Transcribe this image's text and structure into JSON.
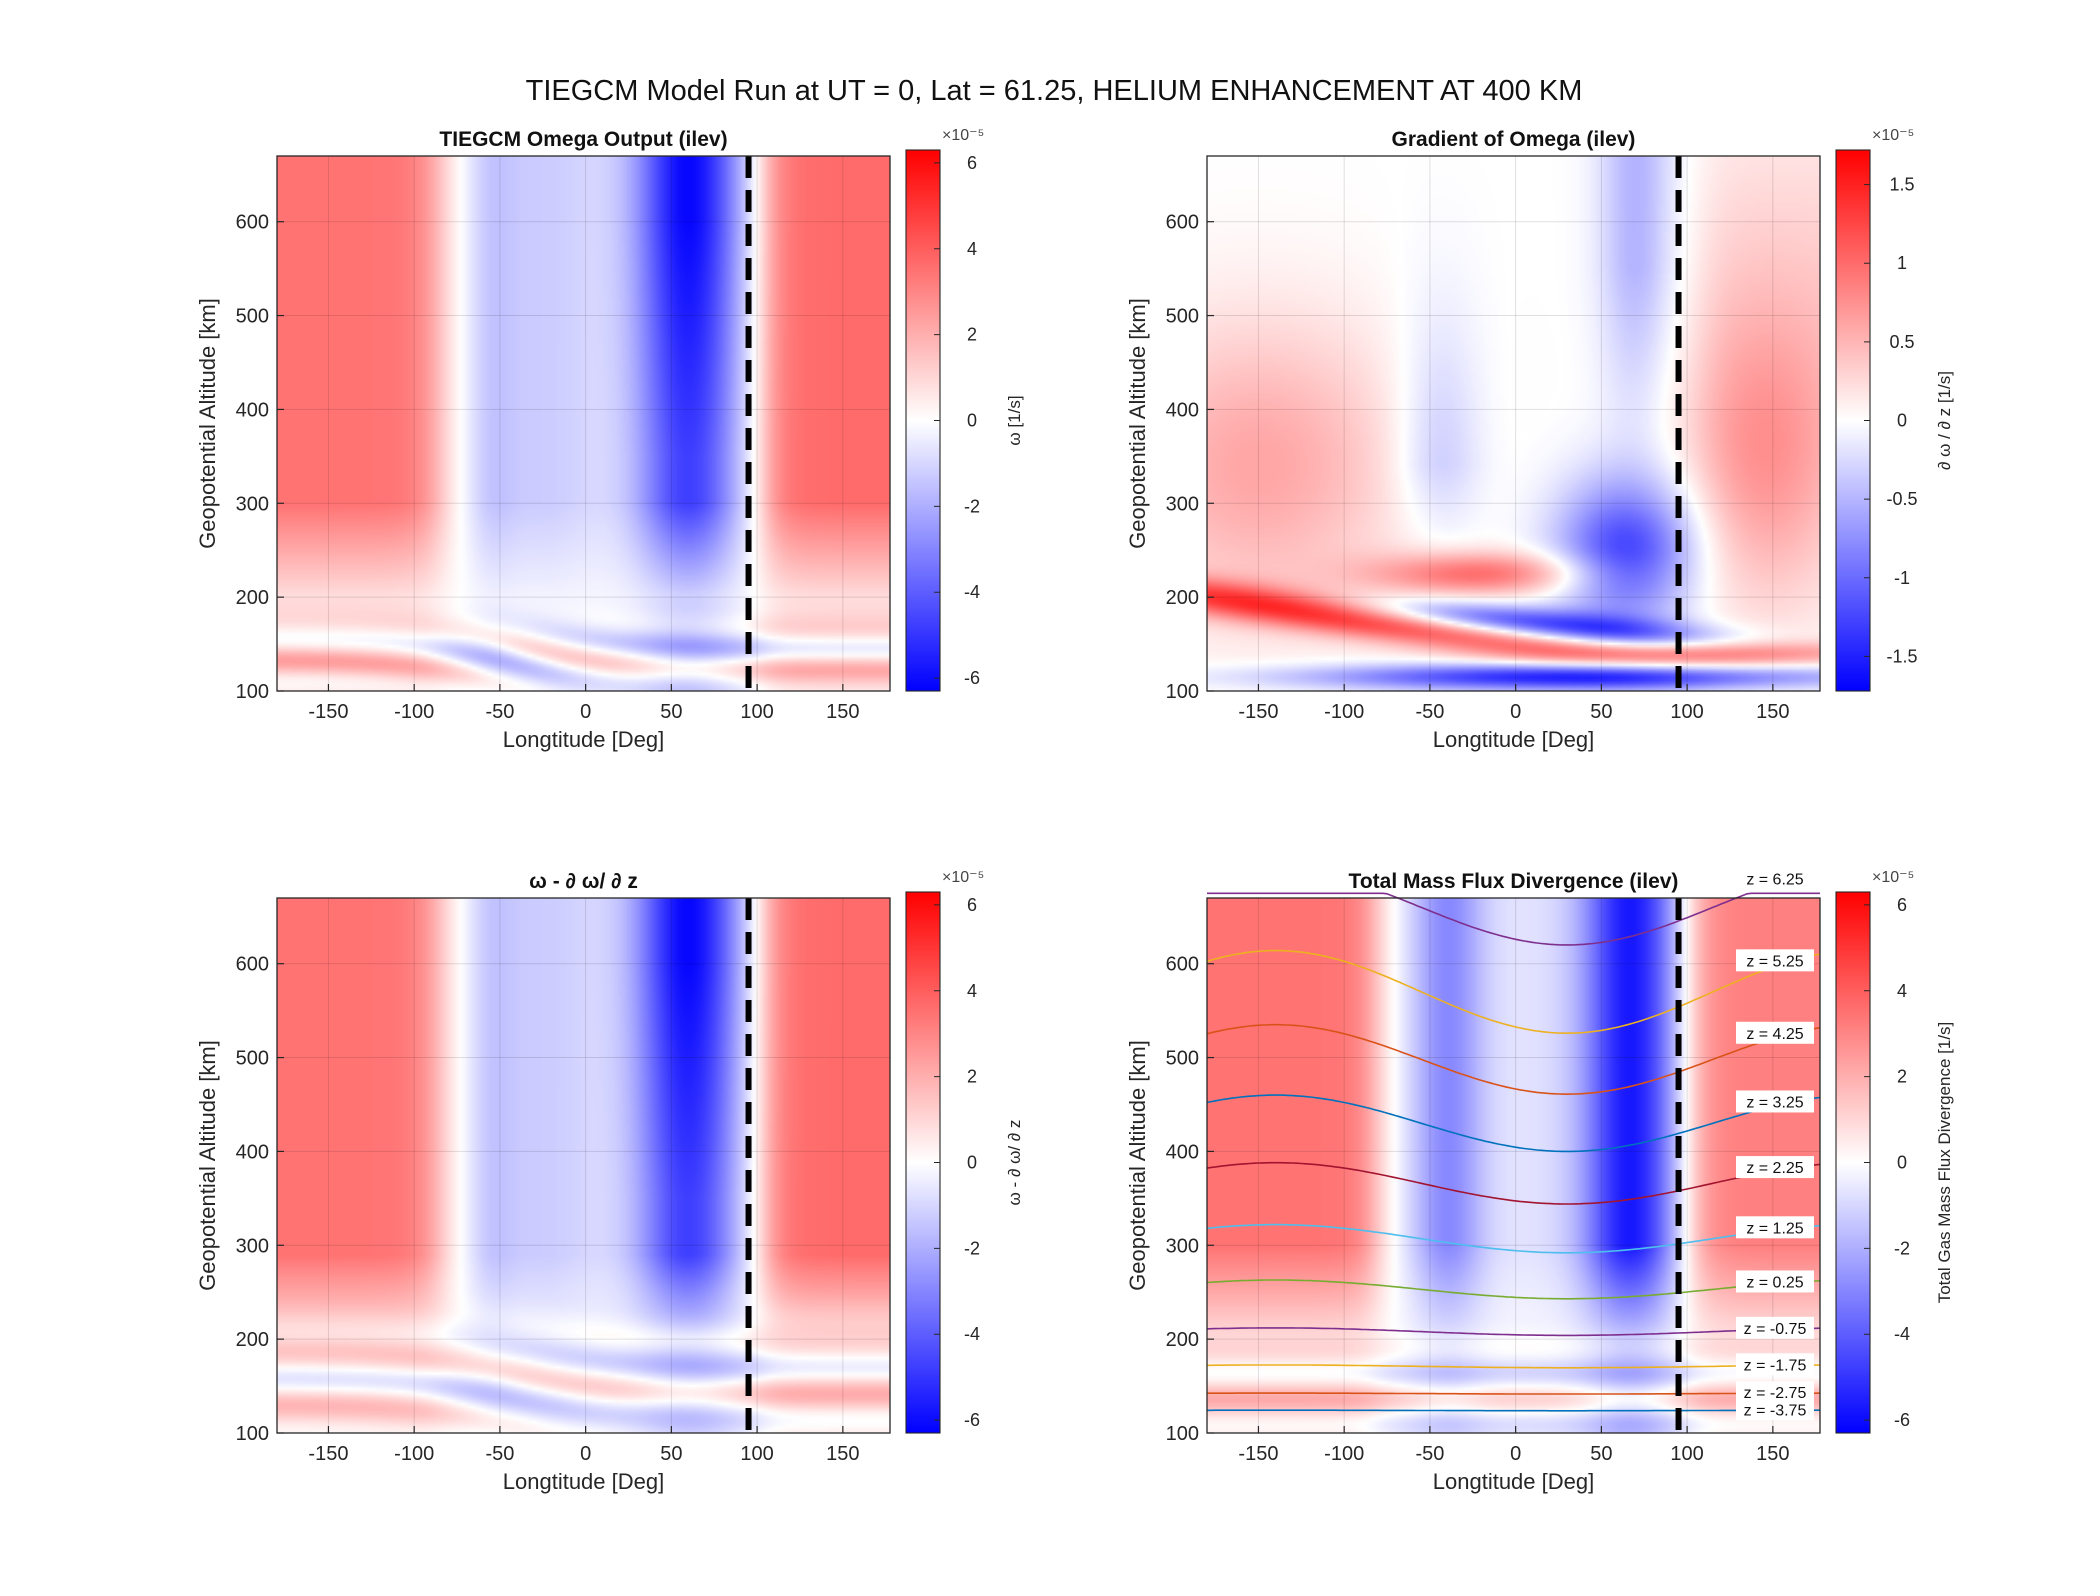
{
  "figure": {
    "suptitle": "TIEGCM Model Run at UT = 0, Lat = 61.25, HELIUM ENHANCEMENT AT 400 KM"
  },
  "chart_data": [
    {
      "type": "heatmap",
      "id": "omega",
      "title": "TIEGCM Omega Output (ilev)",
      "xlabel": "Longtitude [Deg]",
      "ylabel": "Geopotential Altitude [km]",
      "xlim": [
        -180,
        177.5
      ],
      "ylim": [
        100,
        670
      ],
      "xticks": [
        -150,
        -100,
        -50,
        0,
        50,
        100,
        150
      ],
      "yticks": [
        100,
        200,
        300,
        400,
        500,
        600
      ],
      "colorbar": {
        "label": "ω [1/s]",
        "ticks": [
          "-6",
          "-4",
          "-2",
          "0",
          "2",
          "4",
          "6"
        ],
        "values": [
          -6,
          -4,
          -2,
          0,
          2,
          4,
          6
        ],
        "clim": [
          -6.3,
          6.3
        ],
        "exponent": "×10⁻⁵"
      },
      "dashed_line_x": 95
    },
    {
      "type": "heatmap",
      "id": "gradient",
      "title": "Gradient of Omega (ilev)",
      "xlabel": "Longtitude [Deg]",
      "ylabel": "Geopotential Altitude [km]",
      "xlim": [
        -180,
        177.5
      ],
      "ylim": [
        100,
        670
      ],
      "xticks": [
        -150,
        -100,
        -50,
        0,
        50,
        100,
        150
      ],
      "yticks": [
        100,
        200,
        300,
        400,
        500,
        600
      ],
      "colorbar": {
        "label": "∂ ω / ∂ z [1/s]",
        "ticks": [
          "-1.5",
          "-1",
          "-0.5",
          "0",
          "0.5",
          "1",
          "1.5"
        ],
        "values": [
          -1.5,
          -1,
          -0.5,
          0,
          0.5,
          1,
          1.5
        ],
        "clim": [
          -1.72,
          1.72
        ],
        "exponent": "×10⁻⁵"
      },
      "dashed_line_x": 95
    },
    {
      "type": "heatmap",
      "id": "diff",
      "title": "ω - ∂ ω/ ∂ z",
      "xlabel": "Longtitude [Deg]",
      "ylabel": "Geopotential Altitude [km]",
      "xlim": [
        -180,
        177.5
      ],
      "ylim": [
        100,
        670
      ],
      "xticks": [
        -150,
        -100,
        -50,
        0,
        50,
        100,
        150
      ],
      "yticks": [
        100,
        200,
        300,
        400,
        500,
        600
      ],
      "colorbar": {
        "label": "ω - ∂ ω/ ∂ z",
        "ticks": [
          "-6",
          "-4",
          "-2",
          "0",
          "2",
          "4",
          "6"
        ],
        "values": [
          -6,
          -4,
          -2,
          0,
          2,
          4,
          6
        ],
        "clim": [
          -6.3,
          6.3
        ],
        "exponent": "×10⁻⁵"
      },
      "dashed_line_x": 95
    },
    {
      "type": "heatmap",
      "id": "massflux",
      "title": "Total Mass Flux Divergence (ilev)",
      "xlabel": "Longtitude [Deg]",
      "ylabel": "Geopotential Altitude [km]",
      "xlim": [
        -180,
        177.5
      ],
      "ylim": [
        100,
        670
      ],
      "xticks": [
        -150,
        -100,
        -50,
        0,
        50,
        100,
        150
      ],
      "yticks": [
        100,
        200,
        300,
        400,
        500,
        600
      ],
      "colorbar": {
        "label": "Total Gas Mass Flux Divergence [1/s]",
        "ticks": [
          "-6",
          "-4",
          "-2",
          "0",
          "2",
          "4",
          "6"
        ],
        "values": [
          -6,
          -4,
          -2,
          0,
          2,
          4,
          6
        ],
        "clim": [
          -6.3,
          6.3
        ],
        "exponent": "×10⁻⁵"
      },
      "dashed_line_x": 95,
      "contours": [
        {
          "label": "z = 6.25",
          "color": "#7e2f8e",
          "base": 660,
          "amp": 40
        },
        {
          "label": "z = 5.25",
          "color": "#edb120",
          "base": 570,
          "amp": 44
        },
        {
          "label": "z = 4.25",
          "color": "#d95319",
          "base": 498,
          "amp": 37
        },
        {
          "label": "z = 3.25",
          "color": "#0072bd",
          "base": 430,
          "amp": 30
        },
        {
          "label": "z = 2.25",
          "color": "#a2142f",
          "base": 366,
          "amp": 22
        },
        {
          "label": "z = 1.25",
          "color": "#4dbeee",
          "base": 307,
          "amp": 15
        },
        {
          "label": "z = 0.25",
          "color": "#77ac30",
          "base": 253,
          "amp": 10
        },
        {
          "label": "z = -0.75",
          "color": "#7e2f8e",
          "base": 208,
          "amp": 4
        },
        {
          "label": "z = -1.75",
          "color": "#edb120",
          "base": 171,
          "amp": 1.5
        },
        {
          "label": "z = -2.75",
          "color": "#d95319",
          "base": 142,
          "amp": 0.5
        },
        {
          "label": "z = -3.75",
          "color": "#0072bd",
          "base": 124,
          "amp": 0.3
        }
      ]
    }
  ]
}
